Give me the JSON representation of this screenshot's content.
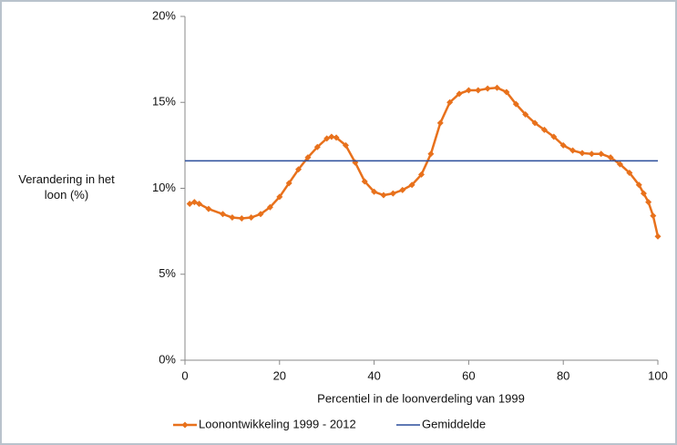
{
  "chart_data": {
    "type": "line",
    "x_label": "Percentiel in de loonverdeling van 1999",
    "y_label": "Verandering in het loon (%)",
    "xlim": [
      0,
      100
    ],
    "xticks": [
      0,
      20,
      40,
      60,
      80,
      100
    ],
    "ylim": [
      0,
      20
    ],
    "yticks": [
      {
        "value": 0,
        "label": "0%"
      },
      {
        "value": 5,
        "label": "5%"
      },
      {
        "value": 10,
        "label": "10%"
      },
      {
        "value": 15,
        "label": "15%"
      },
      {
        "value": 20,
        "label": "20%"
      }
    ],
    "series": [
      {
        "name": "Loonontwikkeling 1999 - 2012",
        "color": "#e8711c",
        "markers": true,
        "x": [
          1,
          2,
          3,
          5,
          8,
          10,
          12,
          14,
          16,
          18,
          20,
          22,
          24,
          26,
          28,
          30,
          31,
          32,
          34,
          36,
          38,
          40,
          42,
          44,
          46,
          48,
          50,
          52,
          54,
          56,
          58,
          60,
          62,
          64,
          66,
          68,
          70,
          72,
          74,
          76,
          78,
          80,
          82,
          84,
          86,
          88,
          90,
          92,
          94,
          96,
          97,
          98,
          99,
          100
        ],
        "values": [
          9.1,
          9.2,
          9.1,
          8.8,
          8.5,
          8.3,
          8.25,
          8.3,
          8.5,
          8.9,
          9.5,
          10.3,
          11.1,
          11.8,
          12.4,
          12.9,
          13.0,
          12.95,
          12.5,
          11.5,
          10.4,
          9.8,
          9.6,
          9.7,
          9.9,
          10.2,
          10.8,
          12.0,
          13.8,
          15.0,
          15.5,
          15.7,
          15.7,
          15.8,
          15.85,
          15.6,
          14.9,
          14.3,
          13.8,
          13.4,
          13.0,
          12.5,
          12.2,
          12.05,
          12.0,
          12.0,
          11.8,
          11.4,
          10.9,
          10.2,
          9.7,
          9.2,
          8.4,
          7.2
        ]
      },
      {
        "name": "Gemiddelde",
        "color": "#2a4d9b",
        "markers": false,
        "x": [
          0,
          100
        ],
        "values": [
          11.6,
          11.6
        ]
      }
    ]
  }
}
